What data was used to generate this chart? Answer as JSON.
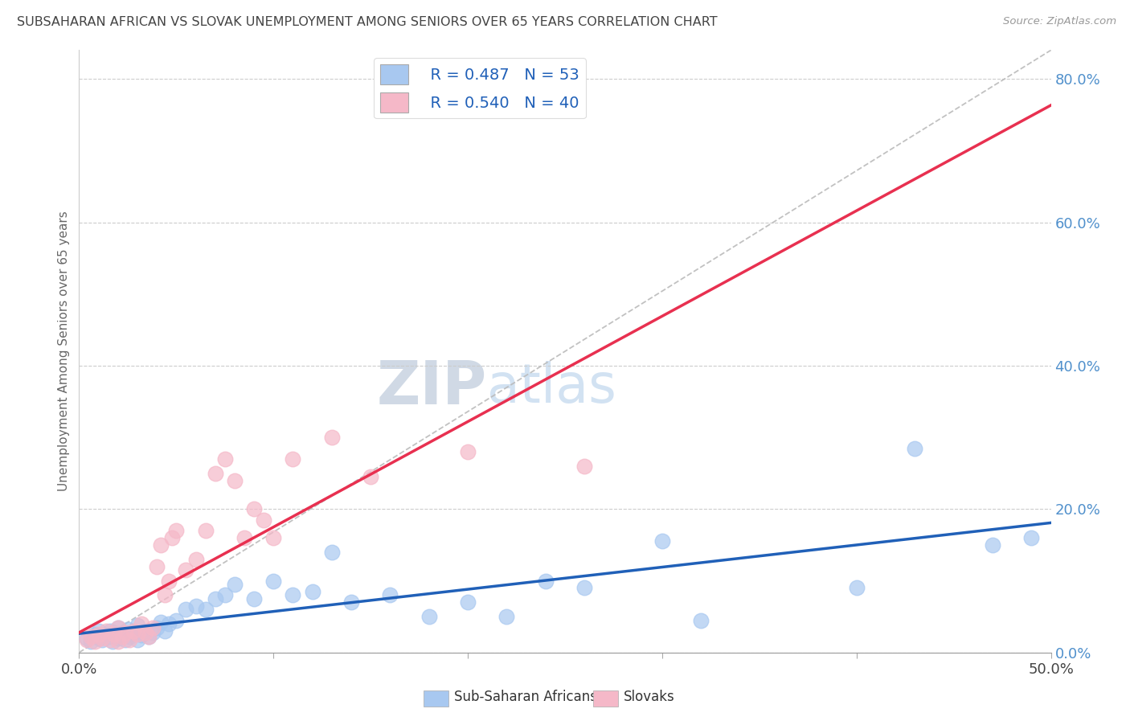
{
  "title": "SUBSAHARAN AFRICAN VS SLOVAK UNEMPLOYMENT AMONG SENIORS OVER 65 YEARS CORRELATION CHART",
  "source": "Source: ZipAtlas.com",
  "ylabel": "Unemployment Among Seniors over 65 years",
  "xlim": [
    0.0,
    0.5
  ],
  "ylim": [
    0.0,
    0.84
  ],
  "legend_r_blue": "R = 0.487",
  "legend_n_blue": "N = 53",
  "legend_r_pink": "R = 0.540",
  "legend_n_pink": "N = 40",
  "legend_label_blue": "Sub-Saharan Africans",
  "legend_label_pink": "Slovaks",
  "blue_scatter_color": "#A8C8F0",
  "pink_scatter_color": "#F5B8C8",
  "blue_line_color": "#2060B8",
  "pink_line_color": "#E83050",
  "diag_line_color": "#BBBBBB",
  "title_color": "#444444",
  "source_color": "#999999",
  "legend_text_color": "#2060B8",
  "ylabel_color": "#666666",
  "right_tick_color": "#5090CC",
  "watermark_text": "ZIPatlas",
  "watermark_color": "#D5E5F5",
  "background_color": "#FFFFFF",
  "grid_color": "#CCCCCC",
  "blue_scatter_x": [
    0.004,
    0.006,
    0.008,
    0.01,
    0.01,
    0.012,
    0.014,
    0.015,
    0.016,
    0.017,
    0.018,
    0.02,
    0.02,
    0.022,
    0.024,
    0.025,
    0.026,
    0.028,
    0.03,
    0.03,
    0.032,
    0.034,
    0.036,
    0.038,
    0.04,
    0.042,
    0.044,
    0.046,
    0.05,
    0.055,
    0.06,
    0.065,
    0.07,
    0.075,
    0.08,
    0.09,
    0.1,
    0.11,
    0.12,
    0.13,
    0.14,
    0.16,
    0.18,
    0.2,
    0.22,
    0.24,
    0.26,
    0.3,
    0.32,
    0.4,
    0.43,
    0.47,
    0.49
  ],
  "blue_scatter_y": [
    0.02,
    0.015,
    0.025,
    0.02,
    0.03,
    0.018,
    0.025,
    0.022,
    0.03,
    0.015,
    0.028,
    0.02,
    0.035,
    0.025,
    0.018,
    0.032,
    0.022,
    0.028,
    0.018,
    0.038,
    0.024,
    0.03,
    0.022,
    0.028,
    0.035,
    0.042,
    0.03,
    0.04,
    0.045,
    0.06,
    0.065,
    0.06,
    0.075,
    0.08,
    0.095,
    0.075,
    0.1,
    0.08,
    0.085,
    0.14,
    0.07,
    0.08,
    0.05,
    0.07,
    0.05,
    0.1,
    0.09,
    0.155,
    0.045,
    0.09,
    0.285,
    0.15,
    0.16
  ],
  "pink_scatter_x": [
    0.004,
    0.006,
    0.008,
    0.01,
    0.012,
    0.014,
    0.016,
    0.018,
    0.02,
    0.02,
    0.022,
    0.024,
    0.026,
    0.028,
    0.03,
    0.032,
    0.034,
    0.036,
    0.038,
    0.04,
    0.042,
    0.044,
    0.046,
    0.048,
    0.05,
    0.055,
    0.06,
    0.065,
    0.07,
    0.075,
    0.08,
    0.085,
    0.09,
    0.095,
    0.1,
    0.11,
    0.13,
    0.15,
    0.2,
    0.26
  ],
  "pink_scatter_y": [
    0.018,
    0.022,
    0.015,
    0.025,
    0.02,
    0.03,
    0.018,
    0.025,
    0.015,
    0.035,
    0.022,
    0.028,
    0.018,
    0.03,
    0.025,
    0.04,
    0.028,
    0.022,
    0.035,
    0.12,
    0.15,
    0.08,
    0.1,
    0.16,
    0.17,
    0.115,
    0.13,
    0.17,
    0.25,
    0.27,
    0.24,
    0.16,
    0.2,
    0.185,
    0.16,
    0.27,
    0.3,
    0.245,
    0.28,
    0.26
  ]
}
